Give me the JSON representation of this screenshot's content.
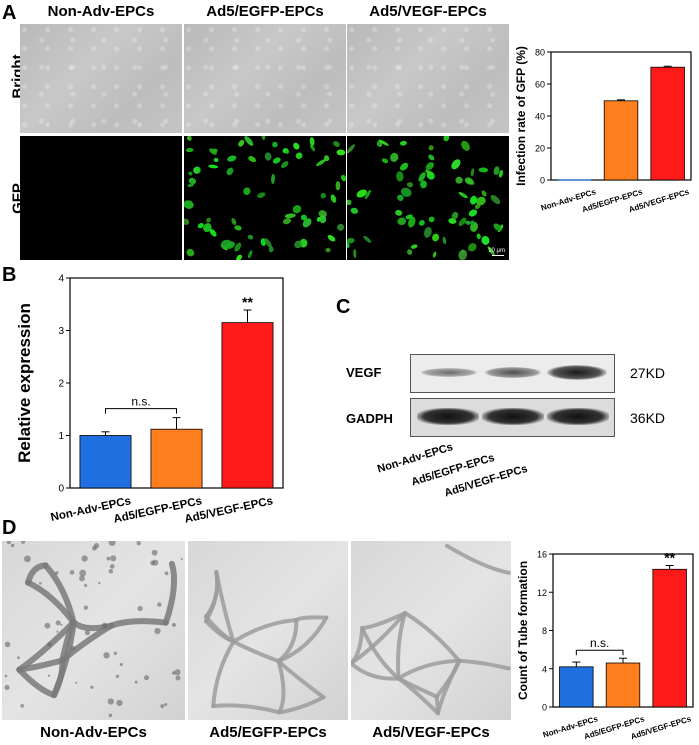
{
  "panels": {
    "A": {
      "label": "A",
      "columns": [
        "Non-Adv-EPCs",
        "Ad5/EGFP-EPCs",
        "Ad5/VEGF-EPCs"
      ],
      "rows": [
        "Bright",
        "GFP"
      ],
      "scale_bar": "10 μm"
    },
    "B": {
      "label": "B"
    },
    "C": {
      "label": "C",
      "bands": [
        {
          "name": "VEGF",
          "kd": "27KD"
        },
        {
          "name": "GADPH",
          "kd": "36KD"
        }
      ],
      "lanes": [
        "Non-Adv-EPCs",
        "Ad5/EGFP-EPCs",
        "Ad5/VEGF-EPCs"
      ]
    },
    "D": {
      "label": "D",
      "columns": [
        "Non-Adv-EPCs",
        "Ad5/EGFP-EPCs",
        "Ad5/VEGF-EPCs"
      ]
    }
  },
  "colors": {
    "blue": "#1f6fe0",
    "orange": "#ff7f1e",
    "red": "#ff1a1a"
  },
  "chart_data": [
    {
      "id": "A",
      "type": "bar",
      "categories": [
        "Non-Adv-EPCs",
        "Ad5/EGFP-EPCs",
        "Ad5/VEGF-EPCs"
      ],
      "values": [
        0,
        49.5,
        70.5
      ],
      "errors": [
        0,
        0.6,
        0.6
      ],
      "ylabel": "Infection rate of GFP (%)",
      "ylim": [
        0,
        80
      ],
      "yticks": [
        0,
        20,
        40,
        60,
        80
      ],
      "annotations": []
    },
    {
      "id": "B",
      "type": "bar",
      "categories": [
        "Non-Adv-EPCs",
        "Ad5/EGFP-EPCs",
        "Ad5/VEGF-EPCs"
      ],
      "values": [
        1.0,
        1.12,
        3.15
      ],
      "errors": [
        0.07,
        0.22,
        0.24
      ],
      "ylabel": "Relative expression",
      "ylim": [
        0,
        4
      ],
      "yticks": [
        0,
        1,
        2,
        3,
        4
      ],
      "annotations": [
        {
          "text": "n.s.",
          "between": [
            0,
            1
          ]
        },
        {
          "text": "**",
          "over": 2
        }
      ]
    },
    {
      "id": "D",
      "type": "bar",
      "categories": [
        "Non-Adv-EPCs",
        "Ad5/EGFP-EPCs",
        "Ad5/VEGF-EPCs"
      ],
      "values": [
        4.2,
        4.6,
        14.4
      ],
      "errors": [
        0.5,
        0.5,
        0.4
      ],
      "ylabel": "Count of Tube formation",
      "ylim": [
        0,
        16
      ],
      "yticks": [
        0,
        4,
        8,
        12,
        16
      ],
      "annotations": [
        {
          "text": "n.s.",
          "between": [
            0,
            1
          ]
        },
        {
          "text": "**",
          "over": 2
        }
      ]
    }
  ]
}
